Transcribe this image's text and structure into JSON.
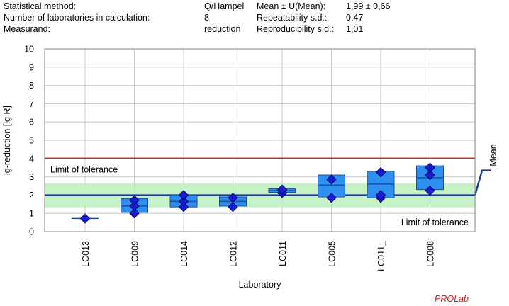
{
  "stats": {
    "rows": [
      {
        "label": "Statistical method:",
        "value": "Q/Hampel",
        "label2": "Mean ± U(Mean):",
        "value2": "1,99 ± 0,66"
      },
      {
        "label": "Number of laboratories in calculation:",
        "value": "8",
        "label2": "Repeatability s.d.:",
        "value2": "0,47"
      },
      {
        "label": "Measurand:",
        "value": "reduction",
        "label2": "Reproducibility s.d.:",
        "value2": "1,01"
      }
    ]
  },
  "brand": "PROLab",
  "colors": {
    "box_fill": "#2f8ff0",
    "box_edge": "#1d4f9a",
    "marker": "#1a1ad4",
    "mean_line": "#1c3f8f",
    "limit_line": "#e02020",
    "band": "#bdf0bd",
    "grid": "#c8c8c8"
  },
  "chart_data": {
    "type": "box",
    "title": "",
    "xlabel": "Laboratory",
    "ylabel": "lg-reduction [lg R]",
    "ylim": [
      0,
      10
    ],
    "yticks": [
      "0",
      "1",
      "2",
      "3",
      "4",
      "5",
      "6",
      "7",
      "8",
      "9",
      "10"
    ],
    "grid": true,
    "categories": [
      "LC013",
      "LC009",
      "LC014",
      "LC012",
      "LC011",
      "LC005",
      "LC011_",
      "LC008"
    ],
    "boxes": [
      {
        "lab": "LC013",
        "low": 0.72,
        "high": 0.72,
        "median": 0.72,
        "points": [
          0.72
        ]
      },
      {
        "lab": "LC009",
        "low": 1.05,
        "high": 1.8,
        "median": 1.4,
        "points": [
          1.0,
          1.4,
          1.72
        ]
      },
      {
        "lab": "LC014",
        "low": 1.35,
        "high": 2.0,
        "median": 1.65,
        "points": [
          1.35,
          1.65,
          2.0
        ]
      },
      {
        "lab": "LC012",
        "low": 1.4,
        "high": 1.9,
        "median": 1.65,
        "points": [
          1.35,
          1.85
        ]
      },
      {
        "lab": "LC011",
        "low": 2.15,
        "high": 2.35,
        "median": 2.25,
        "points": [
          2.12,
          2.3
        ]
      },
      {
        "lab": "LC005",
        "low": 1.9,
        "high": 3.1,
        "median": 2.55,
        "points": [
          1.85,
          2.85
        ]
      },
      {
        "lab": "LC011_",
        "low": 1.85,
        "high": 3.3,
        "median": 2.6,
        "points": [
          1.85,
          2.0,
          3.25
        ]
      },
      {
        "lab": "LC008",
        "low": 2.3,
        "high": 3.6,
        "median": 2.95,
        "points": [
          2.25,
          3.1,
          3.5
        ]
      }
    ],
    "mean": 1.99,
    "mean_band": [
      1.33,
      2.65
    ],
    "upper_limit": 4.02,
    "lower_limit": 0.0,
    "labels": {
      "upper_limit": "Limit of tolerance",
      "lower_limit": "Limit of tolerance",
      "mean": "Mean"
    }
  }
}
